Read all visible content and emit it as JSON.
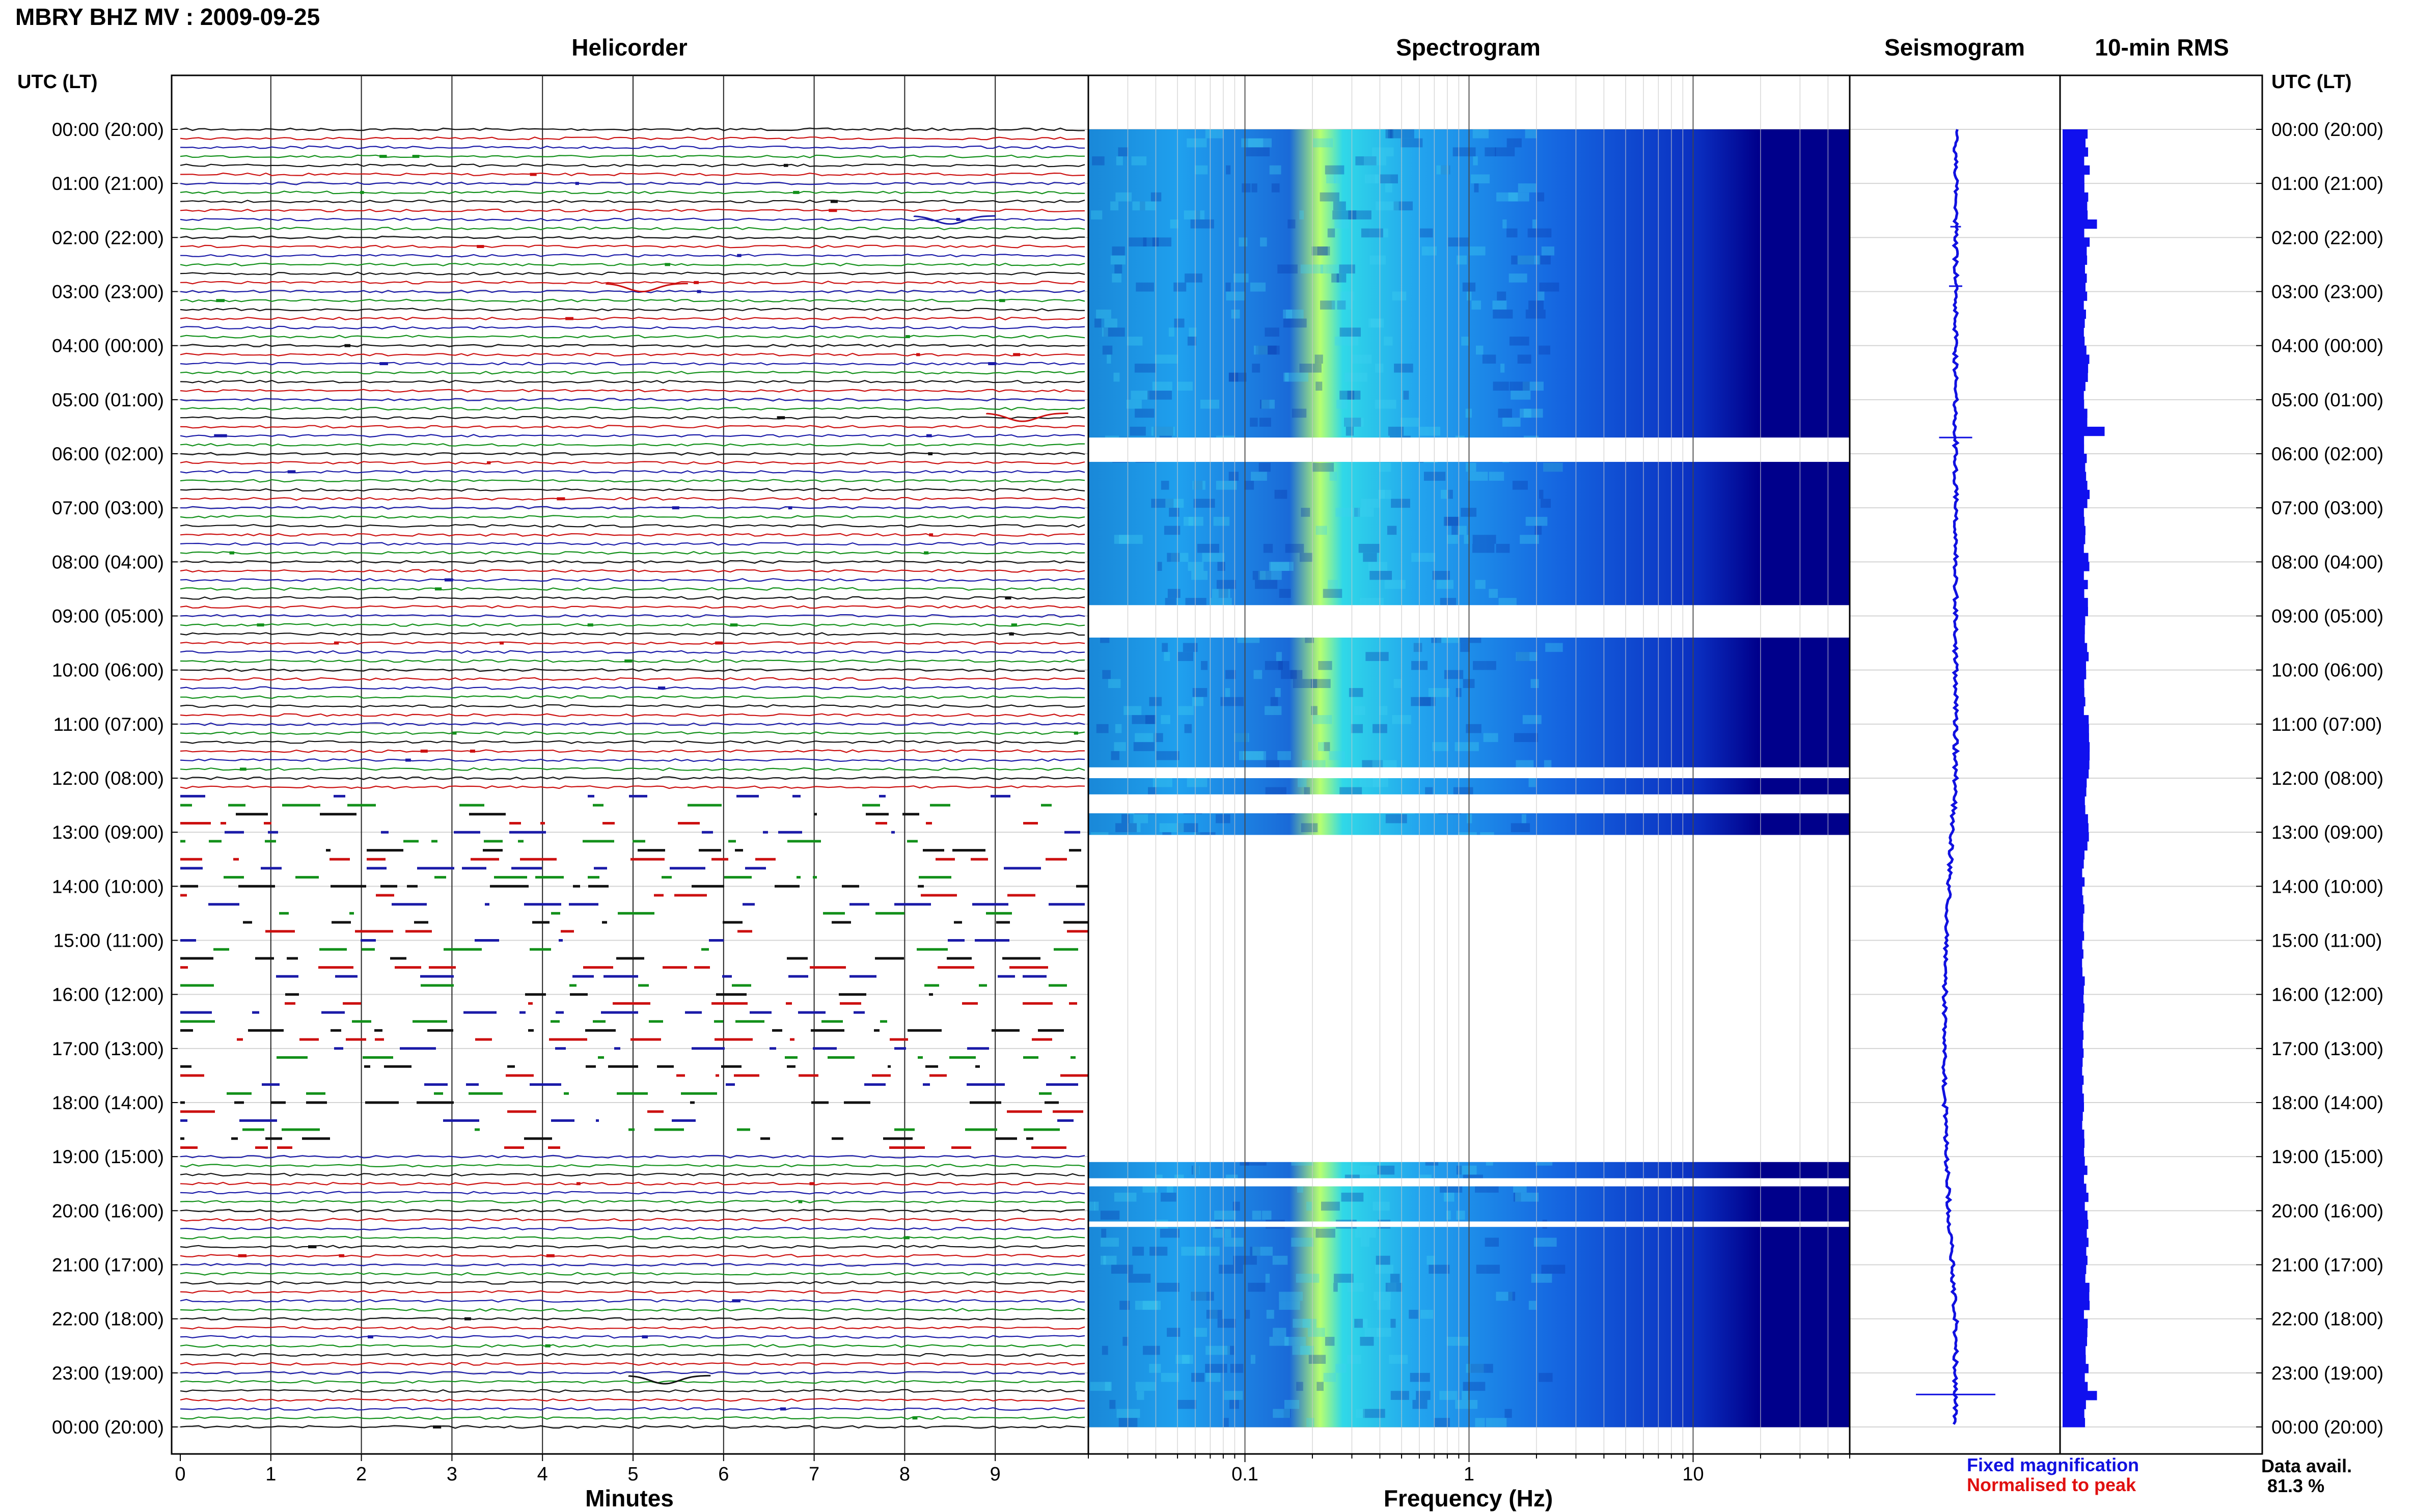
{
  "header": {
    "title": "MBRY BHZ MV : 2009-09-25"
  },
  "panels": {
    "helicorder": "Helicorder",
    "spectrogram": "Spectrogram",
    "seismogram": "Seismogram",
    "rms": "10-min RMS"
  },
  "axes": {
    "utc_label_left": "UTC (LT)",
    "utc_label_right": "UTC (LT)",
    "minutes_label": "Minutes",
    "frequency_label": "Frequency (Hz)"
  },
  "legend": {
    "fixed": "Fixed magnification",
    "normalised": "Normalised to peak",
    "fixed_color": "#1010e0",
    "normalised_color": "#e01010"
  },
  "data_availability": {
    "label": "Data avail.",
    "value": "81.3 %"
  },
  "colors": {
    "trace_black": "#111111",
    "trace_red": "#cc1010",
    "trace_blue": "#1a1aa8",
    "trace_green": "#12901a",
    "spectrogram_low": "#00008b",
    "spectrogram_high": "#b8ff70",
    "rms_bar": "#1010ee"
  },
  "chart_data": [
    {
      "type": "helicorder",
      "title": "Helicorder",
      "xlabel": "Minutes",
      "x_ticks": [
        "0",
        "1",
        "2",
        "3",
        "4",
        "5",
        "6",
        "7",
        "8",
        "9"
      ],
      "xlim": [
        0,
        10
      ],
      "y_ticks_left": [
        "00:00 (20:00)",
        "01:00 (21:00)",
        "02:00 (22:00)",
        "03:00 (23:00)",
        "04:00 (00:00)",
        "05:00 (01:00)",
        "06:00 (02:00)",
        "07:00 (03:00)",
        "08:00 (04:00)",
        "09:00 (05:00)",
        "10:00 (06:00)",
        "11:00 (07:00)",
        "12:00 (08:00)",
        "13:00 (09:00)",
        "14:00 (10:00)",
        "15:00 (11:00)",
        "16:00 (12:00)",
        "17:00 (13:00)",
        "18:00 (14:00)",
        "19:00 (15:00)",
        "20:00 (16:00)",
        "21:00 (17:00)",
        "22:00 (18:00)",
        "23:00 (19:00)",
        "00:00 (20:00)"
      ],
      "lines_per_hour": 6,
      "trace_colors_cycle": [
        "black",
        "red",
        "blue",
        "green"
      ],
      "sparse_data_hours": [
        12.2,
        18.9
      ],
      "events": [
        {
          "hour": 5.25,
          "minute": 9.3,
          "color": "red"
        },
        {
          "hour": 23.05,
          "minute": 5.35,
          "color": "black"
        },
        {
          "hour": 1.6,
          "minute": 8.5,
          "color": "blue"
        },
        {
          "hour": 2.85,
          "minute": 5.1,
          "color": "red"
        }
      ]
    },
    {
      "type": "heatmap",
      "title": "Spectrogram",
      "xlabel": "Frequency (Hz)",
      "x_scale": "log",
      "x_ticks": [
        "0.1",
        "1",
        "10"
      ],
      "xlim": [
        0.02,
        50
      ],
      "colormap": [
        "#00008b",
        "#1565e0",
        "#1fa2f0",
        "#30d8e8",
        "#b8ff70"
      ],
      "dominant_band_hz": [
        0.2,
        0.6
      ],
      "no_data_hours": [
        13.3,
        18.65
      ],
      "gap_hours": [
        5.7,
        6.15,
        8.8,
        9.4,
        11.8,
        12.0,
        12.3,
        12.65,
        13.05,
        19.1,
        19.4,
        19.55,
        20.2,
        20.3
      ]
    },
    {
      "type": "line",
      "title": "Seismogram",
      "orientation": "vertical",
      "ylim_hours": [
        0,
        24
      ],
      "spikes": [
        {
          "hour": 5.7,
          "amplitude": 0.25
        },
        {
          "hour": 23.4,
          "amplitude": 0.6
        },
        {
          "hour": 2.9,
          "amplitude": 0.1
        },
        {
          "hour": 1.8,
          "amplitude": 0.08
        }
      ]
    },
    {
      "type": "bar",
      "title": "10-min RMS",
      "orientation": "horizontal",
      "bins_per_hour": 6,
      "ylim_hours": [
        0,
        24
      ],
      "baseline_relative": 0.3,
      "peaks": [
        {
          "hour": 5.5,
          "value": 0.55
        },
        {
          "hour": 2.8,
          "value": 0.3
        },
        {
          "hour": 1.7,
          "value": 0.45
        },
        {
          "hour": 23.3,
          "value": 0.45
        },
        {
          "hour": 0.2,
          "value": 0.3
        }
      ]
    }
  ]
}
